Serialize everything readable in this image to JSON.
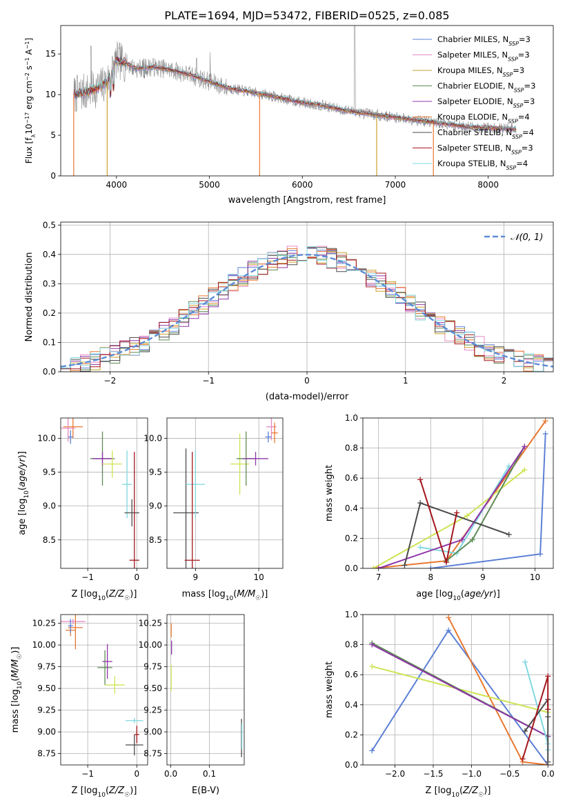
{
  "figure": {
    "title": "PLATE=1694, MJD=53472, FIBERID=0525, z=0.085"
  },
  "legend_spectrum": [
    {
      "main": "Chabrier MILES, N",
      "sub": "SSP",
      "tail": "=3",
      "color": "#5b7fd6"
    },
    {
      "main": "Salpeter MILES, N",
      "sub": "SSP",
      "tail": "=3",
      "color": "#e78ac3"
    },
    {
      "main": "Kroupa MILES, N",
      "sub": "SSP",
      "tail": "=3",
      "color": "#c8a02c"
    },
    {
      "main": "Chabrier ELODIE, N",
      "sub": "SSP",
      "tail": "=3",
      "color": "#5e8a54"
    },
    {
      "main": "Salpeter ELODIE, N",
      "sub": "SSP",
      "tail": "=3",
      "color": "#8e35a8"
    },
    {
      "main": "Kroupa ELODIE, N",
      "sub": "SSP",
      "tail": "=4",
      "color": "#e8772e"
    },
    {
      "main": "Chabrier STELIB, N",
      "sub": "SSP",
      "tail": "=4",
      "color": "#4a4a4a"
    },
    {
      "main": "Salpeter STELIB, N",
      "sub": "SSP",
      "tail": "=3",
      "color": "#a3161c"
    },
    {
      "main": "Kroupa STELIB, N",
      "sub": "SSP",
      "tail": "=4",
      "color": "#7fd8e0"
    }
  ],
  "legend_hist": {
    "label": "𝒩(0, 1)",
    "color": "#5b8bd6"
  },
  "chart_data": [
    {
      "id": "spectrum",
      "type": "line",
      "title": "PLATE=1694, MJD=53472, FIBERID=0525, z=0.085",
      "xlabel": "wavelength [Angstrom, rest frame]",
      "ylabel_parts": [
        "Flux [f",
        "λ",
        "10",
        "−17",
        " erg cm",
        "−2",
        " s",
        "−1",
        " A",
        "−1",
        "]"
      ],
      "xlim": [
        3400,
        8700
      ],
      "ylim": [
        0,
        18.5
      ],
      "xticks": [
        4000,
        5000,
        6000,
        7000,
        8000
      ],
      "xtick_labels": [
        "4000",
        "5000",
        "6000",
        "7000",
        "8000"
      ],
      "yticks": [
        0,
        5,
        10,
        15
      ],
      "ytick_labels": [
        "0",
        "5",
        "10",
        "15"
      ],
      "observed_color": "#8a8a8a",
      "model_continuum": [
        [
          3540,
          10.0
        ],
        [
          3700,
          10.4
        ],
        [
          3800,
          10.8
        ],
        [
          3900,
          11.6
        ],
        [
          4000,
          14.2
        ],
        [
          4100,
          13.9
        ],
        [
          4200,
          13.2
        ],
        [
          4400,
          13.4
        ],
        [
          4600,
          13.0
        ],
        [
          4800,
          12.4
        ],
        [
          5000,
          11.6
        ],
        [
          5200,
          10.8
        ],
        [
          5400,
          10.4
        ],
        [
          5600,
          10.0
        ],
        [
          5800,
          9.5
        ],
        [
          6000,
          9.0
        ],
        [
          6200,
          8.7
        ],
        [
          6400,
          8.2
        ],
        [
          6600,
          7.8
        ],
        [
          6800,
          7.5
        ],
        [
          7000,
          7.2
        ],
        [
          7200,
          6.9
        ],
        [
          7400,
          6.6
        ],
        [
          7600,
          6.3
        ],
        [
          7800,
          6.0
        ],
        [
          8000,
          5.9
        ],
        [
          8200,
          5.8
        ],
        [
          8300,
          5.7
        ]
      ],
      "dropouts": [
        [
          3540,
          "#e8772e"
        ],
        [
          3900,
          "#c8a02c"
        ],
        [
          5540,
          "#e8772e"
        ],
        [
          6800,
          "#c8a02c"
        ],
        [
          7410,
          "#e8772e"
        ]
      ]
    },
    {
      "id": "residual_histogram",
      "type": "bar",
      "xlabel": "(data-model)/error",
      "ylabel": "Normed distribution",
      "xlim": [
        -2.5,
        2.5
      ],
      "ylim": [
        0,
        0.51
      ],
      "xticks": [
        -2,
        -1,
        0,
        1,
        2
      ],
      "xtick_labels": [
        "−2",
        "−1",
        "0",
        "1",
        "2"
      ],
      "yticks": [
        0,
        0.1,
        0.2,
        0.3,
        0.4,
        0.5
      ],
      "ytick_labels": [
        "0.0",
        "0.1",
        "0.2",
        "0.3",
        "0.4",
        "0.5"
      ],
      "bin_width": 0.1,
      "bin_start": -2.5,
      "reference_curve": "standard normal density"
    },
    {
      "id": "age_vs_Z",
      "type": "scatter",
      "xlabel": "Z [log10(Z/Z☉)]",
      "ylabel": "age [log10(age/yr)]",
      "xlim": [
        -1.55,
        0.22
      ],
      "ylim": [
        8.08,
        10.3
      ],
      "xticks": [
        -1,
        0
      ],
      "xtick_labels": [
        "−1",
        "0"
      ],
      "yticks": [
        8.5,
        9.0,
        9.5,
        10.0
      ],
      "ytick_labels": [
        "8.5",
        "9.0",
        "9.5",
        "10.0"
      ],
      "points": [
        {
          "x": -1.3,
          "y": 10.17,
          "xerr": 0.2,
          "yerr": 0.17,
          "color": "#e8772e"
        },
        {
          "x": -1.4,
          "y": 10.15,
          "xerr": 0.15,
          "yerr": 0.2,
          "color": "#e78ac3"
        },
        {
          "x": -1.35,
          "y": 10.02,
          "xerr": 0.05,
          "yerr": 0.1,
          "color": "#5b7fd6"
        },
        {
          "x": -0.7,
          "y": 9.7,
          "xerr": 0.25,
          "yerr": 0.4,
          "color": "#5e8a54"
        },
        {
          "x": -0.7,
          "y": 9.7,
          "xerr": 0.2,
          "yerr": 0.1,
          "color": "#8e35a8"
        },
        {
          "x": -0.5,
          "y": 9.62,
          "xerr": 0.2,
          "yerr": 0.2,
          "color": "#cfe353"
        },
        {
          "x": -0.2,
          "y": 9.32,
          "xerr": 0.1,
          "yerr": 0.5,
          "color": "#7fd8e0"
        },
        {
          "x": -0.1,
          "y": 8.9,
          "xerr": 0.15,
          "yerr": 0.2,
          "color": "#4a4a4a"
        },
        {
          "x": -0.05,
          "y": 8.2,
          "xerr": 0.1,
          "yerr": 1.6,
          "color": "#a3161c"
        }
      ]
    },
    {
      "id": "age_vs_mass",
      "type": "scatter",
      "xlabel": "mass [log10(M/M☉)]",
      "ylabel": "",
      "xlim": [
        8.55,
        10.38
      ],
      "ylim": [
        8.08,
        10.3
      ],
      "xticks": [
        9,
        10
      ],
      "xtick_labels": [
        "9",
        "10"
      ],
      "yticks": [
        8.5,
        9.0,
        9.5,
        10.0
      ],
      "ytick_labels": [
        "8.5",
        "9.0",
        "9.5",
        "10.0"
      ],
      "points": [
        {
          "x": 8.85,
          "y": 8.9,
          "xerr": 0.2,
          "yerr": 0.95,
          "color": "#4a4a4a"
        },
        {
          "x": 9.0,
          "y": 9.32,
          "xerr": 0.15,
          "yerr": 0.5,
          "color": "#7fd8e0"
        },
        {
          "x": 8.95,
          "y": 8.2,
          "xerr": 0.12,
          "yerr": 1.6,
          "color": "#a3161c"
        },
        {
          "x": 9.7,
          "y": 9.62,
          "xerr": 0.15,
          "yerr": 0.45,
          "color": "#cfe353"
        },
        {
          "x": 9.8,
          "y": 9.7,
          "xerr": 0.15,
          "yerr": 0.4,
          "color": "#5e8a54"
        },
        {
          "x": 9.95,
          "y": 9.7,
          "xerr": 0.2,
          "yerr": 0.1,
          "color": "#8e35a8"
        },
        {
          "x": 10.2,
          "y": 10.17,
          "xerr": 0.08,
          "yerr": 0.2,
          "color": "#e78ac3"
        },
        {
          "x": 10.15,
          "y": 10.02,
          "xerr": 0.05,
          "yerr": 0.08,
          "color": "#5b7fd6"
        },
        {
          "x": 10.25,
          "y": 10.08,
          "xerr": 0.05,
          "yerr": 0.15,
          "color": "#e8772e"
        }
      ]
    },
    {
      "id": "mass_weight_vs_age",
      "type": "line",
      "xlabel": "age [log10(age/yr)]",
      "ylabel": "mass weight",
      "xlim": [
        6.7,
        10.35
      ],
      "ylim": [
        0,
        1.0
      ],
      "xticks": [
        7,
        8,
        9,
        10
      ],
      "xtick_labels": [
        "7",
        "8",
        "9",
        "10"
      ],
      "yticks": [
        0,
        0.2,
        0.4,
        0.6,
        0.8,
        1.0
      ],
      "ytick_labels": [
        "0.0",
        "0.2",
        "0.4",
        "0.6",
        "0.8",
        "1.0"
      ],
      "series": [
        {
          "color": "#5b7fd6",
          "x": [
            8.0,
            10.1,
            10.2
          ],
          "y": [
            0.0,
            0.095,
            0.895
          ]
        },
        {
          "color": "#e8772e",
          "x": [
            6.9,
            8.3,
            10.2
          ],
          "y": [
            0.0,
            0.05,
            0.98
          ]
        },
        {
          "color": "#cfe353",
          "x": [
            6.9,
            8.7,
            9.8
          ],
          "y": [
            0.0,
            0.35,
            0.655
          ]
        },
        {
          "color": "#7fd8e0",
          "x": [
            7.8,
            8.5,
            9.5
          ],
          "y": [
            0.14,
            0.1,
            0.68
          ]
        },
        {
          "color": "#5e8a54",
          "x": [
            8.3,
            8.8,
            9.8
          ],
          "y": [
            0.05,
            0.19,
            0.81
          ]
        },
        {
          "color": "#8e35a8",
          "x": [
            7.0,
            8.6,
            9.8
          ],
          "y": [
            0.0,
            0.19,
            0.81
          ]
        },
        {
          "color": "#4a4a4a",
          "x": [
            7.5,
            7.8,
            9.5
          ],
          "y": [
            0.02,
            0.435,
            0.225
          ]
        },
        {
          "color": "#a3161c",
          "x": [
            7.8,
            8.3,
            8.5
          ],
          "y": [
            0.59,
            0.04,
            0.37
          ]
        }
      ]
    },
    {
      "id": "mass_vs_Z",
      "type": "scatter",
      "xlabel": "Z [log10(Z/Z☉)]",
      "ylabel": "mass [log10(M/M☉)]",
      "xlim": [
        -1.55,
        0.22
      ],
      "ylim": [
        8.62,
        10.35
      ],
      "xticks": [
        -1,
        0
      ],
      "xtick_labels": [
        "−1",
        "0"
      ],
      "yticks": [
        8.75,
        9.0,
        9.25,
        9.5,
        9.75,
        10.0,
        10.25
      ],
      "ytick_labels": [
        "8.75",
        "9.00",
        "9.25",
        "9.50",
        "9.75",
        "10.00",
        "10.25"
      ],
      "points": [
        {
          "x": -1.3,
          "y": 10.27,
          "xerr": 0.25,
          "yerr": 0.03,
          "color": "#e78ac3"
        },
        {
          "x": -1.35,
          "y": 10.17,
          "xerr": 0.1,
          "yerr": 0.07,
          "color": "#e8772e"
        },
        {
          "x": -1.25,
          "y": 10.2,
          "xerr": 0.15,
          "yerr": 0.25,
          "color": "#e8772e"
        },
        {
          "x": -1.35,
          "y": 10.22,
          "xerr": 0.05,
          "yerr": 0.08,
          "color": "#5b7fd6"
        },
        {
          "x": -0.65,
          "y": 9.74,
          "xerr": 0.15,
          "yerr": 0.2,
          "color": "#5e8a54"
        },
        {
          "x": -0.6,
          "y": 9.81,
          "xerr": 0.1,
          "yerr": 0.2,
          "color": "#8e35a8"
        },
        {
          "x": -0.45,
          "y": 9.54,
          "xerr": 0.2,
          "yerr": 0.1,
          "color": "#cfe353"
        },
        {
          "x": -0.05,
          "y": 9.13,
          "xerr": 0.18,
          "yerr": 0.03,
          "color": "#7fd8e0"
        },
        {
          "x": 0.0,
          "y": 8.97,
          "xerr": 0.05,
          "yerr": 0.1,
          "color": "#a3161c"
        },
        {
          "x": -0.05,
          "y": 8.85,
          "xerr": 0.18,
          "yerr": 0.12,
          "color": "#4a4a4a"
        }
      ]
    },
    {
      "id": "mass_vs_ebv",
      "type": "scatter",
      "xlabel": "E(B-V)",
      "ylabel": "",
      "xlim": [
        -0.01,
        0.19
      ],
      "ylim": [
        8.62,
        10.35
      ],
      "xticks": [
        0.0,
        0.1
      ],
      "xtick_labels": [
        "0.0",
        "0.1"
      ],
      "yticks": [
        8.75,
        9.0,
        9.25,
        9.5,
        9.75,
        10.0,
        10.25
      ],
      "ytick_labels": [
        "8.75",
        "9.00",
        "9.25",
        "9.50",
        "9.75",
        "10.00",
        "10.25"
      ],
      "points": [
        {
          "x": 0.001,
          "y": 10.17,
          "xerr": 0.0,
          "yerr": 0.08,
          "color": "#e8772e"
        },
        {
          "x": 0.002,
          "y": 9.97,
          "xerr": 0.0,
          "yerr": 0.08,
          "color": "#8e35a8"
        },
        {
          "x": 0.001,
          "y": 9.62,
          "xerr": 0.0,
          "yerr": 0.15,
          "color": "#cfe353"
        },
        {
          "x": 0.183,
          "y": 8.93,
          "xerr": 0.0,
          "yerr": 0.22,
          "color": "#4a4a4a"
        },
        {
          "x": 0.184,
          "y": 8.95,
          "xerr": 0.0,
          "yerr": 0.15,
          "color": "#7fd8e0"
        }
      ]
    },
    {
      "id": "mass_weight_vs_Z",
      "type": "line",
      "xlabel": "Z [log10(Z/Z☉)]",
      "ylabel": "mass weight",
      "xlim": [
        -2.42,
        0.07
      ],
      "ylim": [
        0,
        1.0
      ],
      "xticks": [
        -2.0,
        -1.5,
        -1.0,
        -0.5,
        0.0
      ],
      "xtick_labels": [
        "−2.0",
        "−1.5",
        "−1.0",
        "−0.5",
        "0.0"
      ],
      "yticks": [
        0,
        0.2,
        0.4,
        0.6,
        0.8,
        1.0
      ],
      "ytick_labels": [
        "0.0",
        "0.2",
        "0.4",
        "0.6",
        "0.8",
        "1.0"
      ],
      "series": [
        {
          "color": "#5b7fd6",
          "x": [
            -2.3,
            -1.3,
            0.0
          ],
          "y": [
            0.095,
            0.895,
            0.0
          ]
        },
        {
          "color": "#e8772e",
          "x": [
            -1.3,
            -0.33,
            0.0
          ],
          "y": [
            0.98,
            0.02,
            0.0
          ]
        },
        {
          "color": "#cfe353",
          "x": [
            -2.3,
            0.0
          ],
          "y": [
            0.655,
            0.35
          ]
        },
        {
          "color": "#5e8a54",
          "x": [
            -2.3,
            0.0
          ],
          "y": [
            0.81,
            0.19
          ]
        },
        {
          "color": "#8e35a8",
          "x": [
            -2.3,
            0.0
          ],
          "y": [
            0.8,
            0.19
          ]
        },
        {
          "color": "#7fd8e0",
          "x": [
            -0.3,
            0.0,
            0.0
          ],
          "y": [
            0.685,
            0.14,
            0.1
          ]
        },
        {
          "color": "#4a4a4a",
          "x": [
            -0.3,
            0.0,
            0.0,
            0.0
          ],
          "y": [
            0.225,
            0.435,
            0.32,
            0.02
          ]
        },
        {
          "color": "#a3161c",
          "x": [
            -0.33,
            0.0,
            0.0
          ],
          "y": [
            0.04,
            0.59,
            0.37
          ]
        }
      ]
    }
  ]
}
